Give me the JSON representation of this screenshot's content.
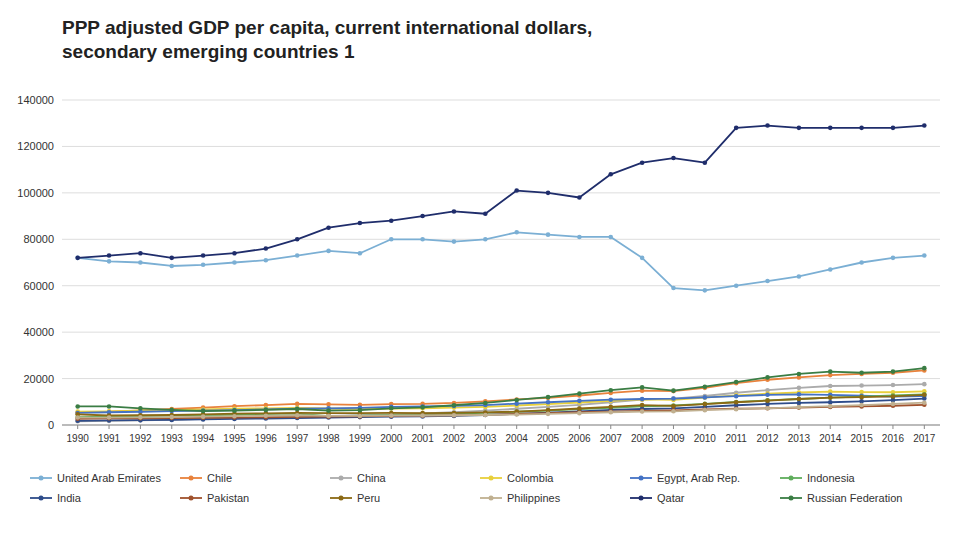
{
  "chart_data": {
    "type": "line",
    "title": "PPP adjusted GDP per capita, current international dollars,\nsecondary emerging countries 1",
    "x": [
      1990,
      1991,
      1992,
      1993,
      1994,
      1995,
      1996,
      1997,
      1998,
      1999,
      2000,
      2001,
      2002,
      2003,
      2004,
      2005,
      2006,
      2007,
      2008,
      2009,
      2010,
      2011,
      2012,
      2013,
      2014,
      2015,
      2016,
      2017
    ],
    "series": [
      {
        "name": "United Arab Emirates",
        "color": "#7BAFD4",
        "values": [
          72000,
          70500,
          70000,
          68500,
          69000,
          70000,
          71000,
          73000,
          75000,
          74000,
          80000,
          80000,
          79000,
          80000,
          83000,
          82000,
          81000,
          81000,
          72000,
          59000,
          58000,
          60000,
          62000,
          64000,
          67000,
          70000,
          72000,
          73000
        ]
      },
      {
        "name": "Chile",
        "color": "#E8823C",
        "values": [
          5400,
          5700,
          6300,
          6900,
          7500,
          8100,
          8600,
          9100,
          8900,
          8700,
          9000,
          9100,
          9500,
          10200,
          11000,
          11700,
          12700,
          13800,
          14800,
          14600,
          16000,
          18000,
          19500,
          20500,
          21500,
          22000,
          22500,
          23500
        ]
      },
      {
        "name": "China",
        "color": "#ABABAB",
        "values": [
          1600,
          1750,
          2000,
          2250,
          2600,
          2900,
          3200,
          3600,
          3900,
          4200,
          4600,
          5000,
          5500,
          6200,
          7000,
          7800,
          8700,
          9800,
          10900,
          11400,
          12500,
          13900,
          15000,
          16000,
          16800,
          17000,
          17200,
          17600
        ]
      },
      {
        "name": "Colombia",
        "color": "#E8D03C",
        "values": [
          5800,
          5900,
          6200,
          6400,
          6700,
          7000,
          7200,
          7400,
          7100,
          7000,
          7100,
          7200,
          7500,
          7800,
          8400,
          9000,
          9700,
          10400,
          11000,
          10800,
          11800,
          12800,
          13500,
          14000,
          14400,
          14200,
          14100,
          14500
        ]
      },
      {
        "name": "Egypt, Arab Rep.",
        "color": "#4472C4",
        "values": [
          5200,
          5500,
          5700,
          6000,
          6200,
          6400,
          6700,
          7000,
          7200,
          7400,
          7800,
          8000,
          8200,
          8600,
          9200,
          9800,
          10400,
          10900,
          11200,
          11400,
          11900,
          12400,
          13000,
          13200,
          13000,
          12600,
          12200,
          12500
        ]
      },
      {
        "name": "Indonesia",
        "color": "#5FAD5C",
        "values": [
          3400,
          3600,
          3800,
          4000,
          4200,
          4400,
          4700,
          4900,
          3800,
          4000,
          4400,
          4600,
          4900,
          5200,
          5700,
          6200,
          6800,
          7400,
          8000,
          8400,
          9100,
          9900,
          10600,
          11200,
          11800,
          12200,
          12700,
          13200
        ]
      },
      {
        "name": "India",
        "color": "#2E4C8A",
        "values": [
          1800,
          2000,
          2100,
          2200,
          2400,
          2600,
          2800,
          3000,
          3200,
          3400,
          3600,
          3700,
          3900,
          4300,
          4800,
          5300,
          5900,
          6500,
          6900,
          7200,
          7800,
          8500,
          9100,
          9500,
          9800,
          10200,
          10700,
          11400
        ]
      },
      {
        "name": "Pakistan",
        "color": "#A0522D",
        "values": [
          2700,
          2900,
          2900,
          3000,
          3100,
          3200,
          3300,
          3500,
          3600,
          3700,
          3900,
          4000,
          4200,
          4400,
          4800,
          5100,
          5500,
          5800,
          6100,
          6300,
          6700,
          7000,
          7200,
          7500,
          7800,
          8000,
          8300,
          8700
        ]
      },
      {
        "name": "Peru",
        "color": "#8B6914",
        "values": [
          4600,
          4100,
          4200,
          4300,
          4600,
          4900,
          5000,
          5200,
          5100,
          5100,
          5200,
          5100,
          5200,
          5400,
          5800,
          6400,
          7100,
          7800,
          8600,
          8200,
          9000,
          9800,
          10500,
          11200,
          11800,
          12000,
          12300,
          13000
        ]
      },
      {
        "name": "Philippines",
        "color": "#C0B090",
        "values": [
          3200,
          3200,
          3300,
          3400,
          3600,
          3800,
          4000,
          4200,
          3900,
          3900,
          4100,
          4100,
          4200,
          4300,
          4500,
          4800,
          5100,
          5500,
          5800,
          5900,
          6400,
          6800,
          7200,
          7700,
          8100,
          8600,
          9100,
          9600
        ]
      },
      {
        "name": "Qatar",
        "color": "#1F2D6B",
        "values": [
          72000,
          73000,
          74000,
          72000,
          73000,
          74000,
          76000,
          80000,
          85000,
          87000,
          88000,
          90000,
          92000,
          91000,
          101000,
          100000,
          98000,
          108000,
          113000,
          115000,
          113000,
          128000,
          129000,
          128000,
          128000,
          128000,
          128000,
          129000
        ]
      },
      {
        "name": "Russian Federation",
        "color": "#3A7D44",
        "values": [
          8000,
          8000,
          7200,
          6500,
          6000,
          6200,
          6500,
          6900,
          6200,
          6400,
          7200,
          7600,
          8500,
          9500,
          10800,
          12000,
          13500,
          15000,
          16200,
          14800,
          16500,
          18500,
          20500,
          22000,
          23000,
          22500,
          23000,
          24500
        ]
      }
    ],
    "xlim": [
      1989.5,
      2017.5
    ],
    "xticks": [
      1990,
      1991,
      1992,
      1993,
      1994,
      1995,
      1996,
      1997,
      1998,
      1999,
      2000,
      2001,
      2002,
      2003,
      2004,
      2005,
      2006,
      2007,
      2008,
      2009,
      2010,
      2011,
      2012,
      2013,
      2014,
      2015,
      2016,
      2017
    ],
    "ylim": [
      0,
      140000
    ],
    "yticks": [
      0,
      20000,
      40000,
      60000,
      80000,
      100000,
      120000,
      140000
    ],
    "grid": true,
    "legend": "bottom",
    "marker": "circle"
  }
}
